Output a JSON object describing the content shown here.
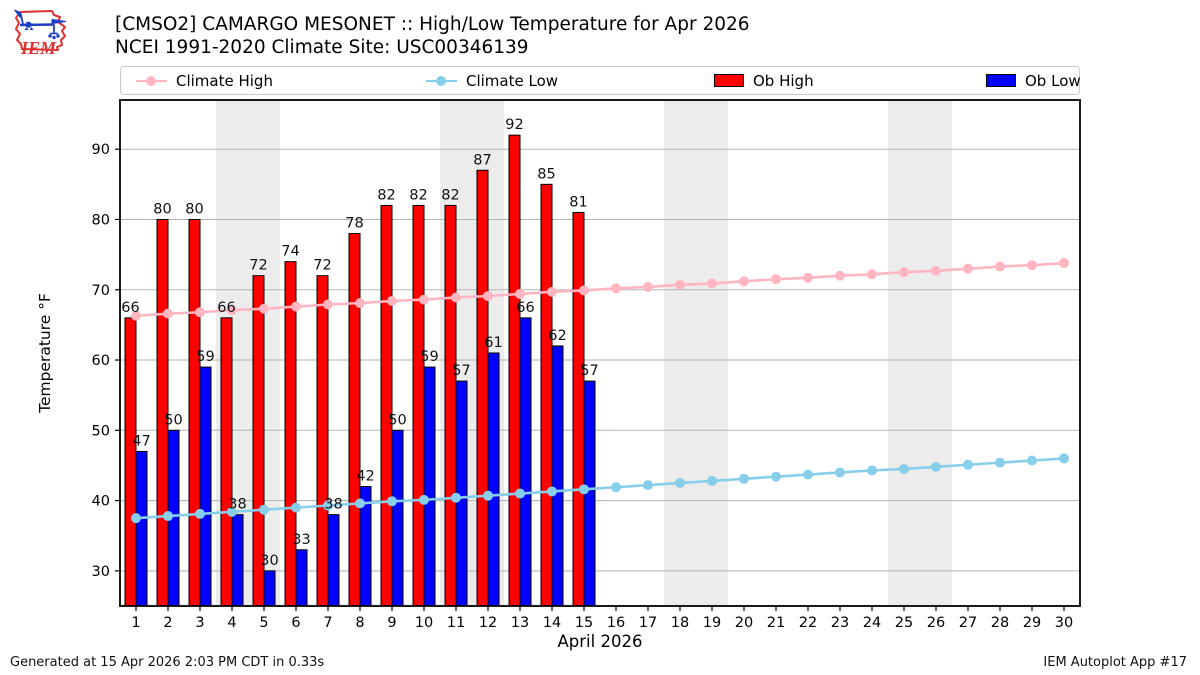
{
  "header": {
    "title_line1": "[CMSO2] CAMARGO MESONET :: High/Low Temperature for Apr 2026",
    "title_line2": "NCEI 1991-2020 Climate Site: USC00346139",
    "logo_text": "IEM"
  },
  "colors": {
    "ob_high": "#ff0000",
    "ob_low": "#0000ff",
    "climate_high": "#ffb6c1",
    "climate_low": "#87ceeb",
    "weekend_band": "#ececec",
    "gridline": "#b3b3b3",
    "frame": "#000000"
  },
  "legend": {
    "items": [
      {
        "label": "Climate High",
        "marker": "line",
        "color": "#ffb6c1"
      },
      {
        "label": "Climate Low",
        "marker": "line",
        "color": "#87ceeb"
      },
      {
        "label": "Ob High",
        "marker": "patch",
        "color": "#ff0000"
      },
      {
        "label": "Ob Low",
        "marker": "patch",
        "color": "#0000ff"
      }
    ]
  },
  "chart_data": {
    "type": "bar",
    "title": "[CMSO2] CAMARGO MESONET :: High/Low Temperature for Apr 2026",
    "xlabel": "April 2026",
    "ylabel": "Temperature °F",
    "xlim": [
      0.5,
      30.5
    ],
    "ylim": [
      25,
      97
    ],
    "xticks": [
      1,
      2,
      3,
      4,
      5,
      6,
      7,
      8,
      9,
      10,
      11,
      12,
      13,
      14,
      15,
      16,
      17,
      18,
      19,
      20,
      21,
      22,
      23,
      24,
      25,
      26,
      27,
      28,
      29,
      30
    ],
    "yticks": [
      30,
      40,
      50,
      60,
      70,
      80,
      90
    ],
    "grid": "horizontal",
    "legend_position": "top",
    "weekend_bands": [
      [
        3.5,
        5.5
      ],
      [
        10.5,
        12.5
      ],
      [
        17.5,
        19.5
      ],
      [
        24.5,
        26.5
      ]
    ],
    "x": [
      1,
      2,
      3,
      4,
      5,
      6,
      7,
      8,
      9,
      10,
      11,
      12,
      13,
      14,
      15,
      16,
      17,
      18,
      19,
      20,
      21,
      22,
      23,
      24,
      25,
      26,
      27,
      28,
      29,
      30
    ],
    "series": [
      {
        "name": "Climate High",
        "type": "line",
        "color": "#ffb6c1",
        "values": [
          66.3,
          66.6,
          66.8,
          67.1,
          67.3,
          67.6,
          67.9,
          68.1,
          68.4,
          68.6,
          68.9,
          69.1,
          69.4,
          69.7,
          69.9,
          70.2,
          70.4,
          70.7,
          70.9,
          71.2,
          71.5,
          71.7,
          72.0,
          72.2,
          72.5,
          72.7,
          73.0,
          73.3,
          73.5,
          73.8
        ]
      },
      {
        "name": "Climate Low",
        "type": "line",
        "color": "#87ceeb",
        "values": [
          37.5,
          37.8,
          38.1,
          38.4,
          38.7,
          39.0,
          39.3,
          39.6,
          39.9,
          40.1,
          40.4,
          40.7,
          41.0,
          41.3,
          41.6,
          41.9,
          42.2,
          42.5,
          42.8,
          43.1,
          43.4,
          43.7,
          44.0,
          44.3,
          44.5,
          44.8,
          45.1,
          45.4,
          45.7,
          46.0
        ]
      },
      {
        "name": "Ob High",
        "type": "bar",
        "color": "#ff0000",
        "label_values": true,
        "values": [
          66,
          80,
          80,
          66,
          72,
          74,
          72,
          78,
          82,
          82,
          82,
          87,
          92,
          85,
          81
        ]
      },
      {
        "name": "Ob Low",
        "type": "bar",
        "color": "#0000ff",
        "label_values": true,
        "values": [
          47,
          50,
          59,
          38,
          30,
          33,
          38,
          42,
          50,
          59,
          57,
          61,
          66,
          62,
          57
        ]
      }
    ]
  },
  "footer": {
    "left": "Generated at 15 Apr 2026 2:03 PM CDT in 0.33s",
    "right": "IEM Autoplot App #17"
  }
}
